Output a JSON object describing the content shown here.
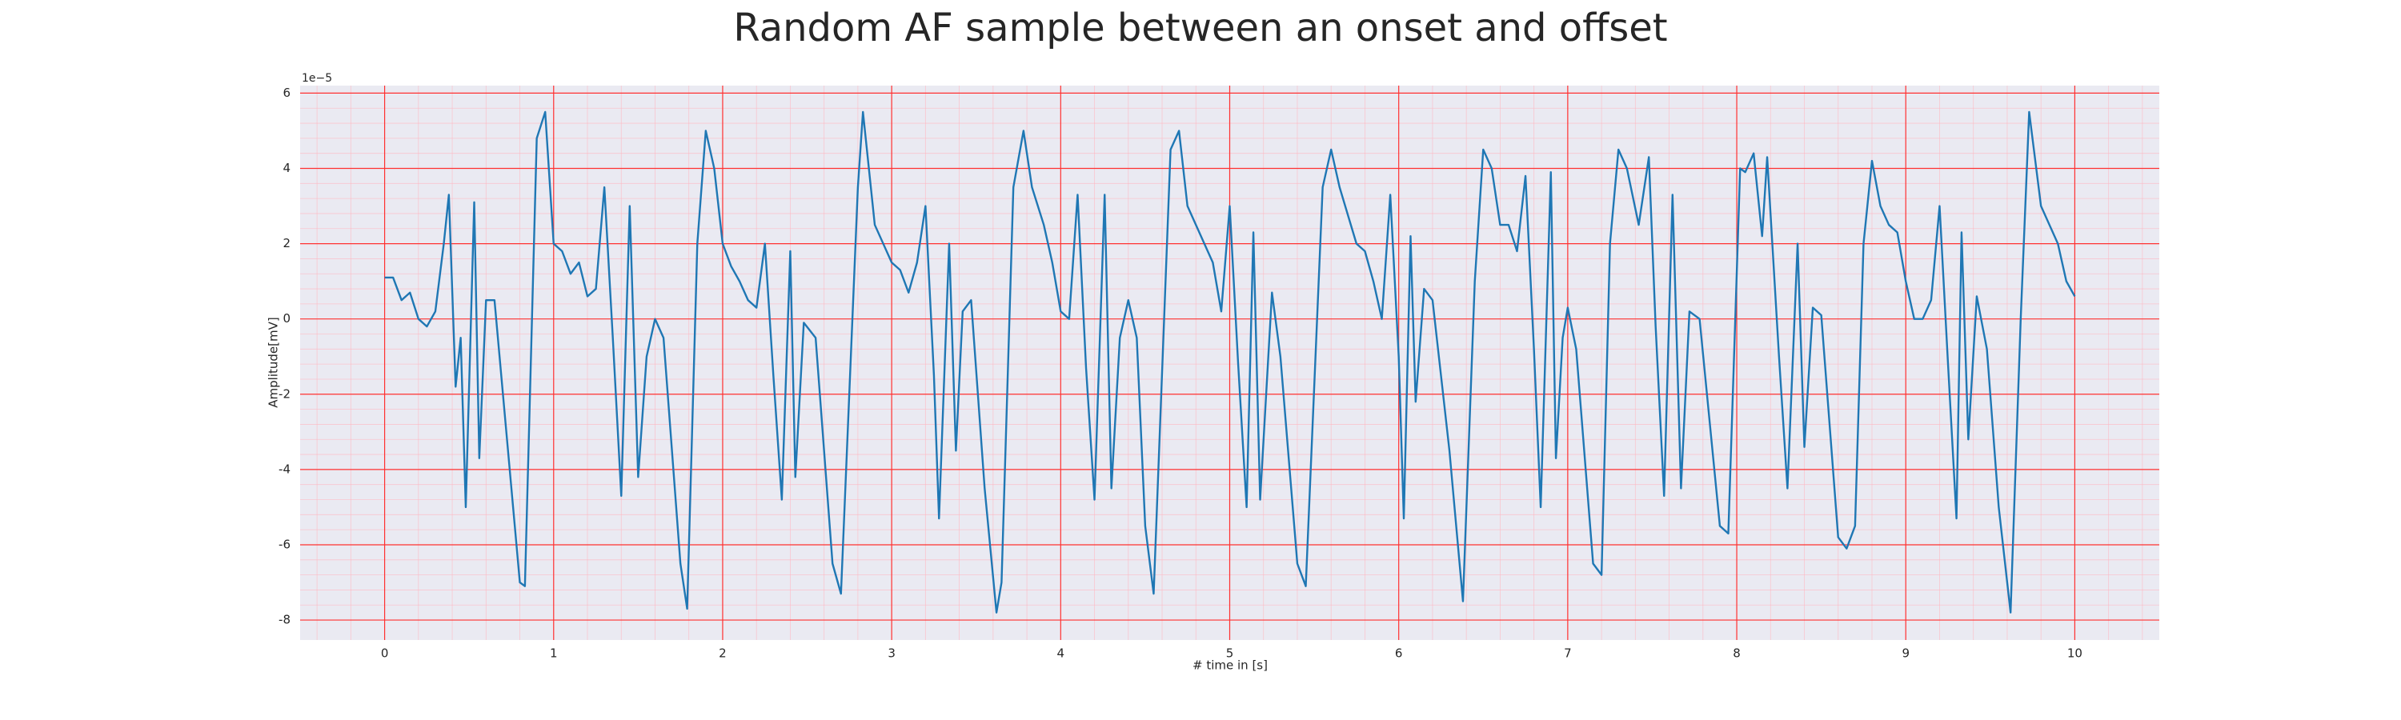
{
  "chart_data": {
    "type": "line",
    "title": "Random AF sample between an onset and offset",
    "x_label": "# time in [s]",
    "y_label": "Amplitude[mV]",
    "y_offset_label": "1e−5",
    "color": "#1f77b4",
    "grid": true,
    "minor_grid": true,
    "xlim": [
      -0.5,
      10.5
    ],
    "ylim": [
      -8.53,
      6.2
    ],
    "xticks": [
      0,
      1,
      2,
      3,
      4,
      5,
      6,
      7,
      8,
      9,
      10
    ],
    "yticks": [
      -8,
      -6,
      -4,
      -2,
      0,
      2,
      4,
      6
    ],
    "x": [
      0,
      0.05,
      0.1,
      0.15,
      0.2,
      0.25,
      0.3,
      0.35,
      0.38,
      0.42,
      0.45,
      0.48,
      0.53,
      0.56,
      0.6,
      0.65,
      0.72,
      0.8,
      0.83,
      0.9,
      0.95,
      1.0,
      1.05,
      1.1,
      1.15,
      1.2,
      1.25,
      1.3,
      1.35,
      1.4,
      1.45,
      1.5,
      1.55,
      1.6,
      1.65,
      1.75,
      1.79,
      1.85,
      1.9,
      1.95,
      2.0,
      2.05,
      2.1,
      2.15,
      2.2,
      2.25,
      2.3,
      2.35,
      2.4,
      2.43,
      2.48,
      2.55,
      2.65,
      2.7,
      2.8,
      2.83,
      2.9,
      3.0,
      3.05,
      3.1,
      3.15,
      3.2,
      3.25,
      3.28,
      3.34,
      3.38,
      3.42,
      3.47,
      3.55,
      3.62,
      3.65,
      3.72,
      3.78,
      3.83,
      3.9,
      3.95,
      4.0,
      4.05,
      4.1,
      4.15,
      4.2,
      4.26,
      4.3,
      4.35,
      4.4,
      4.45,
      4.5,
      4.55,
      4.65,
      4.7,
      4.75,
      4.85,
      4.9,
      4.95,
      5.0,
      5.05,
      5.1,
      5.14,
      5.18,
      5.25,
      5.3,
      5.4,
      5.45,
      5.55,
      5.6,
      5.65,
      5.75,
      5.8,
      5.85,
      5.9,
      5.95,
      6.0,
      6.03,
      6.07,
      6.1,
      6.15,
      6.2,
      6.3,
      6.38,
      6.45,
      6.5,
      6.55,
      6.6,
      6.65,
      6.7,
      6.75,
      6.8,
      6.84,
      6.9,
      6.93,
      6.97,
      7.0,
      7.05,
      7.15,
      7.2,
      7.25,
      7.3,
      7.35,
      7.42,
      7.48,
      7.52,
      7.57,
      7.62,
      7.67,
      7.72,
      7.78,
      7.9,
      7.95,
      8.02,
      8.05,
      8.1,
      8.15,
      8.18,
      8.25,
      8.3,
      8.36,
      8.4,
      8.45,
      8.5,
      8.6,
      8.65,
      8.7,
      8.75,
      8.8,
      8.85,
      8.9,
      8.95,
      9.0,
      9.05,
      9.1,
      9.15,
      9.2,
      9.25,
      9.3,
      9.33,
      9.37,
      9.42,
      9.48,
      9.55,
      9.62,
      9.68,
      9.73,
      9.8,
      9.85,
      9.9,
      9.95,
      10.0
    ],
    "values": [
      1.1,
      1.1,
      0.5,
      0.7,
      0.0,
      -0.2,
      0.2,
      2.0,
      3.3,
      -1.8,
      -0.5,
      -5.0,
      3.1,
      -3.7,
      0.5,
      0.5,
      -3.0,
      -7.0,
      -7.1,
      4.8,
      5.5,
      2.0,
      1.8,
      1.2,
      1.5,
      0.6,
      0.8,
      3.5,
      -0.5,
      -4.7,
      3.0,
      -4.2,
      -1.0,
      0.0,
      -0.5,
      -6.5,
      -7.7,
      2.0,
      5.0,
      4.0,
      2.0,
      1.4,
      1.0,
      0.5,
      0.3,
      2.0,
      -1.5,
      -4.8,
      1.8,
      -4.2,
      -0.1,
      -0.5,
      -6.5,
      -7.3,
      3.5,
      5.5,
      2.5,
      1.5,
      1.3,
      0.7,
      1.5,
      3.0,
      -1.5,
      -5.3,
      2.0,
      -3.5,
      0.2,
      0.5,
      -4.5,
      -7.8,
      -7.0,
      3.5,
      5.0,
      3.5,
      2.5,
      1.5,
      0.2,
      0.0,
      3.3,
      -1.3,
      -4.8,
      3.3,
      -4.5,
      -0.5,
      0.5,
      -0.5,
      -5.5,
      -7.3,
      4.5,
      5.0,
      3.0,
      2.0,
      1.5,
      0.2,
      3.0,
      -1.2,
      -5.0,
      2.3,
      -4.8,
      0.7,
      -1.0,
      -6.5,
      -7.1,
      3.5,
      4.5,
      3.5,
      2.0,
      1.8,
      1.0,
      0.0,
      3.3,
      -1.0,
      -5.3,
      2.2,
      -2.2,
      0.8,
      0.5,
      -3.5,
      -7.5,
      1.0,
      4.5,
      4.0,
      2.5,
      2.5,
      1.8,
      3.8,
      -0.8,
      -5.0,
      3.9,
      -3.7,
      -0.5,
      0.3,
      -0.8,
      -6.5,
      -6.8,
      2.0,
      4.5,
      4.0,
      2.5,
      4.3,
      -0.2,
      -4.7,
      3.3,
      -4.5,
      0.2,
      0.0,
      -5.5,
      -5.7,
      4.0,
      3.9,
      4.4,
      2.2,
      4.3,
      -1.0,
      -4.5,
      2.0,
      -3.4,
      0.3,
      0.1,
      -5.8,
      -6.1,
      -5.5,
      2.0,
      4.2,
      3.0,
      2.5,
      2.3,
      1.0,
      0.0,
      0.0,
      0.5,
      3.0,
      -1.2,
      -5.3,
      2.3,
      -3.2,
      0.6,
      -0.8,
      -5.0,
      -7.8,
      0.0,
      5.5,
      3.0,
      2.5,
      2.0,
      1.0,
      0.6
    ]
  }
}
